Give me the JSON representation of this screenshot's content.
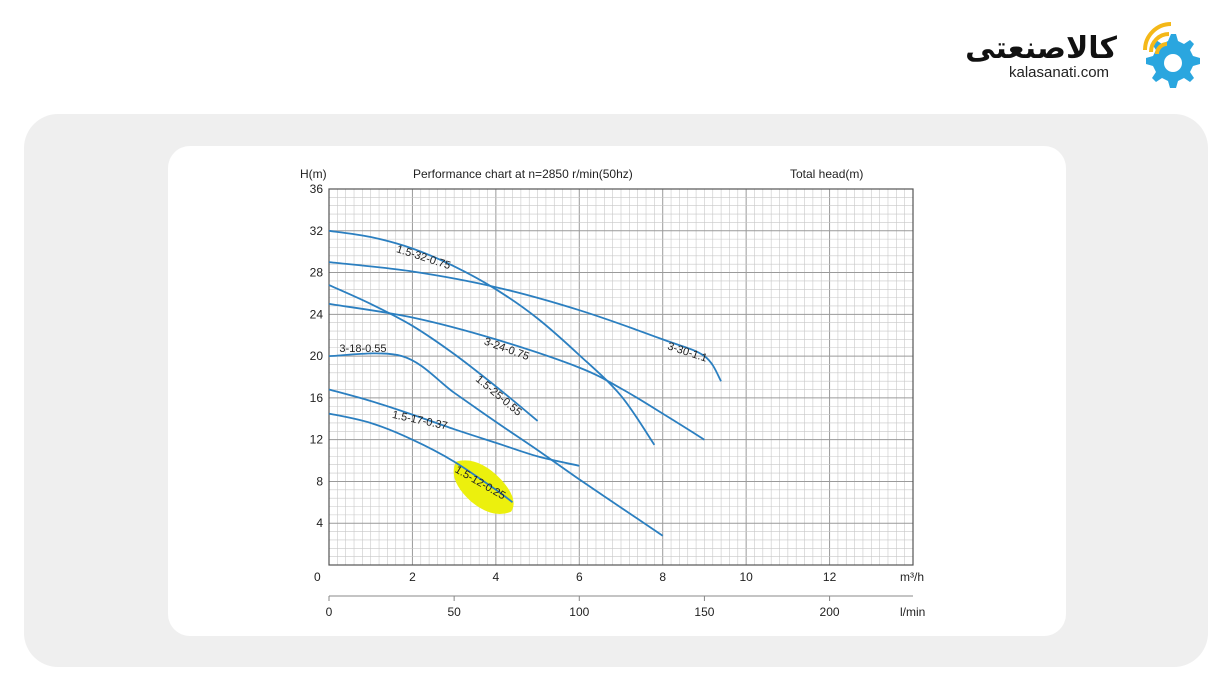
{
  "logo": {
    "name_fa": "کالاصنعتی",
    "url": "kalasanati.com"
  },
  "colors": {
    "curve": "#2b7fc0",
    "grid_minor": "#c8c8c8",
    "grid_major": "#9a9a9a",
    "highlight": "#ecf00d"
  },
  "icons": [
    "wifi-gear-icon"
  ],
  "chart_data": {
    "type": "line",
    "title": "Performance chart at n=2850 r/min(50hz)",
    "right_title": "Total head(m)",
    "ylabel": "H(m)",
    "xlabel": "m³/h",
    "x2label": "l/min",
    "xlim": [
      0,
      14
    ],
    "ylim": [
      0,
      36
    ],
    "yticks": [
      "36",
      "32",
      "28",
      "24",
      "20",
      "16",
      "12",
      "8",
      "4"
    ],
    "y_zero_label": "0",
    "xticks": [
      "2",
      "4",
      "6",
      "8",
      "10",
      "12"
    ],
    "x2ticks": [
      "0",
      "50",
      "100",
      "150",
      "200"
    ],
    "grid": true,
    "series": [
      {
        "name": "1.5-32-0.75",
        "points": [
          [
            0,
            32.0
          ],
          [
            1,
            31.4
          ],
          [
            2,
            30.3
          ],
          [
            3,
            28.6
          ],
          [
            4,
            26.4
          ],
          [
            5,
            23.6
          ],
          [
            6,
            20.1
          ],
          [
            7,
            16.2
          ],
          [
            7.8,
            11.5
          ]
        ]
      },
      {
        "name": "3-30-1.1",
        "points": [
          [
            0,
            29.0
          ],
          [
            2,
            28.1
          ],
          [
            4,
            26.6
          ],
          [
            6,
            24.4
          ],
          [
            8,
            21.6
          ],
          [
            9,
            20.0
          ],
          [
            9.4,
            17.6
          ]
        ]
      },
      {
        "name": "3-24-0.75",
        "points": [
          [
            0,
            25.0
          ],
          [
            2,
            23.7
          ],
          [
            4,
            21.6
          ],
          [
            6,
            18.9
          ],
          [
            7,
            16.9
          ],
          [
            8,
            14.5
          ],
          [
            9,
            12.0
          ]
        ]
      },
      {
        "name": "1.5-25-0.55",
        "points": [
          [
            0,
            26.8
          ],
          [
            1,
            25.0
          ],
          [
            2,
            22.9
          ],
          [
            3,
            20.2
          ],
          [
            4,
            17.1
          ],
          [
            5,
            13.8
          ]
        ]
      },
      {
        "name": "3-18-0.55",
        "points": [
          [
            0,
            20.0
          ],
          [
            1.75,
            20.0
          ],
          [
            3,
            16.5
          ],
          [
            4,
            13.7
          ],
          [
            5,
            11.0
          ],
          [
            6,
            8.2
          ],
          [
            7,
            5.5
          ],
          [
            8,
            2.8
          ]
        ]
      },
      {
        "name": "1.5-17-0.37",
        "points": [
          [
            0,
            16.8
          ],
          [
            1,
            15.7
          ],
          [
            2,
            14.4
          ],
          [
            3,
            13.0
          ],
          [
            4,
            11.7
          ],
          [
            5,
            10.4
          ],
          [
            6,
            9.5
          ]
        ]
      },
      {
        "name": "1.5-12-0.25",
        "points": [
          [
            0,
            14.5
          ],
          [
            1,
            13.6
          ],
          [
            2,
            12.0
          ],
          [
            3,
            9.9
          ],
          [
            4,
            7.2
          ],
          [
            4.4,
            6.0
          ]
        ]
      }
    ]
  }
}
